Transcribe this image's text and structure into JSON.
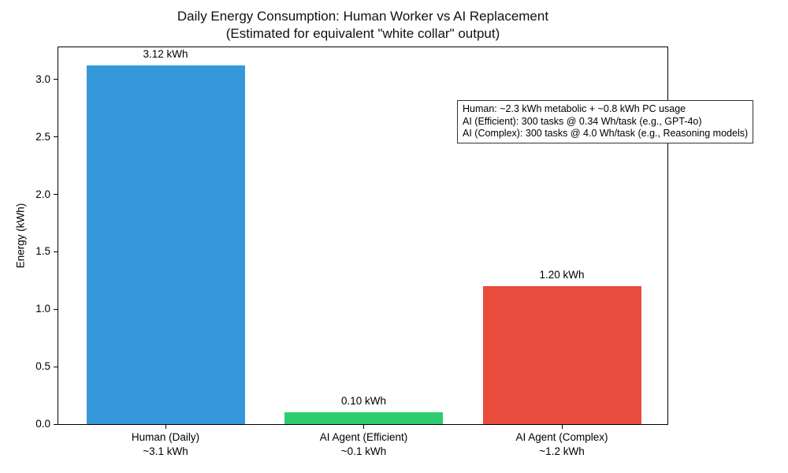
{
  "chart_data": {
    "type": "bar",
    "title": "Daily Energy Consumption: Human Worker vs AI Replacement",
    "subtitle": "(Estimated for equivalent \"white collar\" output)",
    "ylabel": "Energy (kWh)",
    "xlabel": "",
    "ylim": [
      0,
      3.28
    ],
    "grid": false,
    "legend": false,
    "categories": [
      "Human (Daily)",
      "AI Agent (Efficient)",
      "AI Agent (Complex)"
    ],
    "category_sublabels": [
      "~3.1 kWh",
      "~0.1 kWh",
      "~1.2 kWh"
    ],
    "values": [
      3.12,
      0.1,
      1.2
    ],
    "bar_value_labels": [
      "3.12 kWh",
      "0.10 kWh",
      "1.20 kWh"
    ],
    "colors": [
      "#3498db",
      "#2ecc71",
      "#e74c3c"
    ],
    "yticks": [
      0.0,
      0.5,
      1.0,
      1.5,
      2.0,
      2.5,
      3.0
    ],
    "ytick_labels": [
      "0.0",
      "0.5",
      "1.0",
      "1.5",
      "2.0",
      "2.5",
      "3.0"
    ],
    "annotation": {
      "lines": [
        "Human: ~2.3 kWh metabolic + ~0.8 kWh PC usage",
        "AI (Efficient): 300 tasks @ 0.34 Wh/task (e.g., GPT-4o)",
        "AI (Complex): 300 tasks @ 4.0 Wh/task (e.g., Reasoning models)"
      ]
    }
  }
}
